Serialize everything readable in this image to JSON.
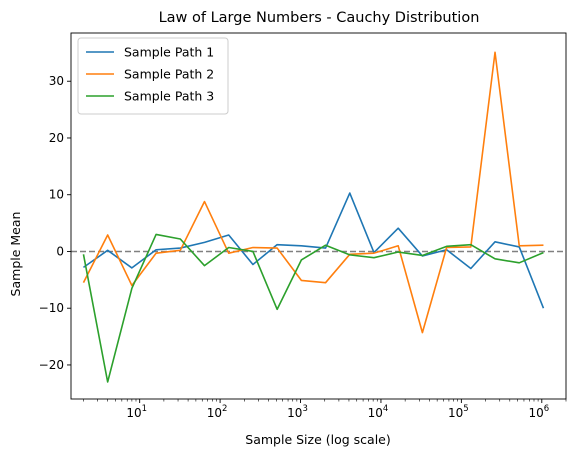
{
  "chart_data": {
    "type": "line",
    "title": "Law of Large Numbers - Cauchy Distribution",
    "xlabel": "Sample Size (log scale)",
    "ylabel": "Sample Mean",
    "xscale": "log",
    "xlim": [
      1.4,
      2000000
    ],
    "ylim": [
      -26,
      38.5
    ],
    "xticks": [
      {
        "value": 10,
        "base": "10",
        "exp": "1"
      },
      {
        "value": 100,
        "base": "10",
        "exp": "2"
      },
      {
        "value": 1000,
        "base": "10",
        "exp": "3"
      },
      {
        "value": 10000,
        "base": "10",
        "exp": "4"
      },
      {
        "value": 100000,
        "base": "10",
        "exp": "5"
      },
      {
        "value": 1000000,
        "base": "10",
        "exp": "6"
      }
    ],
    "yticks": [
      {
        "value": -20,
        "label": "−20"
      },
      {
        "value": -10,
        "label": "−10"
      },
      {
        "value": 0,
        "label": "0"
      },
      {
        "value": 10,
        "label": "10"
      },
      {
        "value": 20,
        "label": "20"
      },
      {
        "value": 30,
        "label": "30"
      }
    ],
    "reference_line": {
      "y": 0,
      "color": "#808080",
      "style": "dashed"
    },
    "legend_position": "top-left",
    "x": [
      2,
      4,
      8,
      16,
      32,
      64,
      128,
      256,
      512,
      1024,
      2048,
      4096,
      8192,
      16384,
      32768,
      65536,
      131072,
      262144,
      524288,
      1048576
    ],
    "series": [
      {
        "name": "Sample Path 1",
        "color": "#1f77b4",
        "values": [
          -2.8,
          0.2,
          -2.9,
          0.3,
          0.6,
          1.6,
          2.9,
          -2.3,
          1.2,
          1.0,
          0.6,
          10.3,
          -0.2,
          4.1,
          -0.8,
          0.3,
          -3.0,
          1.7,
          0.8,
          -10.0
        ]
      },
      {
        "name": "Sample Path 2",
        "color": "#ff7f0e",
        "values": [
          -5.5,
          2.9,
          -6.0,
          -0.3,
          0.2,
          8.8,
          -0.3,
          0.7,
          0.6,
          -5.1,
          -5.5,
          -0.5,
          -0.3,
          1.0,
          -14.3,
          0.7,
          0.8,
          35.1,
          1.0,
          1.1
        ]
      },
      {
        "name": "Sample Path 3",
        "color": "#2ca02c",
        "values": [
          -0.5,
          -23.0,
          -6.5,
          3.0,
          2.2,
          -2.5,
          0.7,
          0.0,
          -10.2,
          -1.5,
          1.1,
          -0.6,
          -1.1,
          -0.1,
          -0.7,
          0.9,
          1.2,
          -1.3,
          -2.0,
          -0.2
        ]
      }
    ]
  }
}
